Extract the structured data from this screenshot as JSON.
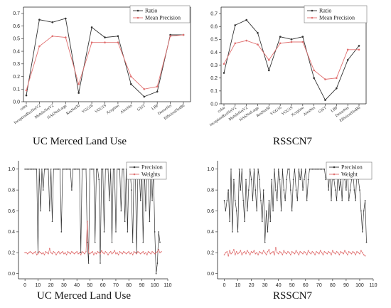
{
  "colors": {
    "series1": "#333333",
    "series2": "#e07070",
    "axis": "#222222"
  },
  "chart_data": [
    {
      "type": "line",
      "caption": "UC Merced Land Use",
      "categories": [
        "color",
        "InceptionResNetV2",
        "MobileNetV2",
        "NASNetLarge",
        "ResNet50",
        "VGG16",
        "VGG19",
        "Xception",
        "AlexNet",
        "GIST",
        "LBP",
        "DenseNet",
        "EfficientNetB0"
      ],
      "yticks": [
        "0.0",
        "0.1",
        "0.2",
        "0.3",
        "0.4",
        "0.5",
        "0.6",
        "0.7"
      ],
      "ylim": [
        0,
        0.75
      ],
      "legend": {
        "position": "top-right"
      },
      "series": [
        {
          "name": "Ratio",
          "values": [
            0.05,
            0.65,
            0.63,
            0.66,
            0.07,
            0.59,
            0.51,
            0.52,
            0.14,
            0.04,
            0.08,
            0.53,
            0.53
          ]
        },
        {
          "name": "Mean Precision",
          "values": [
            0.09,
            0.44,
            0.52,
            0.51,
            0.14,
            0.47,
            0.47,
            0.47,
            0.2,
            0.1,
            0.12,
            0.52,
            0.53
          ]
        }
      ]
    },
    {
      "type": "line",
      "caption": "RSSCN7",
      "categories": [
        "color",
        "InceptionResNetV2",
        "MobileNetV2",
        "NASNetLarge",
        "ResNet50",
        "VGG16",
        "VGG19",
        "Xception",
        "AlexNet",
        "GIST",
        "LBP",
        "DenseNet",
        "EfficientNetB0"
      ],
      "yticks": [
        "0.0",
        "0.1",
        "0.2",
        "0.3",
        "0.4",
        "0.5",
        "0.6",
        "0.7"
      ],
      "ylim": [
        0,
        0.75
      ],
      "legend": {
        "position": "top-right"
      },
      "series": [
        {
          "name": "Ratio",
          "values": [
            0.24,
            0.61,
            0.65,
            0.55,
            0.26,
            0.52,
            0.5,
            0.52,
            0.2,
            0.03,
            0.12,
            0.34,
            0.45
          ]
        },
        {
          "name": "Mean Precision",
          "values": [
            0.31,
            0.47,
            0.49,
            0.46,
            0.34,
            0.47,
            0.48,
            0.48,
            0.26,
            0.19,
            0.2,
            0.42,
            0.42
          ]
        }
      ]
    },
    {
      "type": "line",
      "caption": "UC Merced Land Use",
      "xticks": [
        "0",
        "10",
        "20",
        "30",
        "40",
        "50",
        "60",
        "70",
        "80",
        "90",
        "100",
        "110"
      ],
      "xlim": [
        -5,
        110
      ],
      "yticks": [
        "0.0",
        "0.2",
        "0.4",
        "0.6",
        "0.8",
        "1.0"
      ],
      "ylim": [
        -0.05,
        1.08
      ],
      "legend": {
        "position": "top-right"
      },
      "series": [
        {
          "name": "Precision",
          "values": [
            1,
            1,
            1,
            1,
            1,
            1,
            1,
            1,
            1,
            1,
            0.2,
            1,
            0.6,
            1,
            0.8,
            1,
            1,
            1,
            1,
            0.6,
            1,
            0.5,
            1,
            1,
            1,
            1,
            1,
            1,
            0.4,
            1,
            1,
            1,
            1,
            1,
            1,
            1,
            0.8,
            1,
            1,
            1,
            1,
            1,
            1,
            0.2,
            1,
            1,
            1,
            1,
            0.3,
            0.1,
            1,
            1,
            1,
            1,
            0.3,
            1,
            1,
            0.9,
            0.1,
            1,
            1,
            0.4,
            1,
            1,
            1,
            0.7,
            1,
            0.3,
            1,
            1,
            0.4,
            1,
            1,
            1,
            0.6,
            1,
            1,
            0.5,
            1,
            0.4,
            1,
            1,
            0.8,
            0.3,
            1,
            1,
            0.2,
            1,
            1,
            0.7,
            1,
            0.3,
            1,
            0.6,
            1,
            1,
            0.5,
            1,
            0.7,
            1,
            0.4,
            0.0,
            0.1,
            0.4,
            0.3
          ]
        },
        {
          "name": "Weights",
          "values": [
            0.2,
            0.2,
            0.19,
            0.2,
            0.21,
            0.2,
            0.19,
            0.2,
            0.21,
            0.18,
            0.19,
            0.21,
            0.2,
            0.19,
            0.2,
            0.18,
            0.21,
            0.2,
            0.19,
            0.24,
            0.2,
            0.19,
            0.21,
            0.2,
            0.18,
            0.2,
            0.21,
            0.19,
            0.2,
            0.21,
            0.19,
            0.2,
            0.18,
            0.21,
            0.2,
            0.19,
            0.21,
            0.2,
            0.19,
            0.2,
            0.21,
            0.19,
            0.2,
            0.18,
            0.21,
            0.2,
            0.19,
            0.21,
            0.5,
            0.2,
            0.19,
            0.2,
            0.21,
            0.18,
            0.2,
            0.19,
            0.21,
            0.2,
            0.19,
            0.22,
            0.2,
            0.19,
            0.21,
            0.2,
            0.18,
            0.2,
            0.21,
            0.19,
            0.2,
            0.22,
            0.19,
            0.2,
            0.18,
            0.21,
            0.2,
            0.19,
            0.21,
            0.2,
            0.19,
            0.2,
            0.21,
            0.19,
            0.2,
            0.18,
            0.21,
            0.2,
            0.19,
            0.21,
            0.2,
            0.19,
            0.2,
            0.21,
            0.19,
            0.2,
            0.18,
            0.21,
            0.2,
            0.19,
            0.21,
            0.2,
            0.19,
            0.2,
            0.21,
            0.23,
            0.2,
            0.21
          ]
        }
      ]
    },
    {
      "type": "line",
      "caption": "RSSCN7",
      "xticks": [
        "0",
        "10",
        "20",
        "30",
        "40",
        "50",
        "60",
        "70",
        "80",
        "90",
        "100",
        "110"
      ],
      "xlim": [
        -5,
        110
      ],
      "yticks": [
        "0.0",
        "0.2",
        "0.4",
        "0.6",
        "0.8",
        "1.0"
      ],
      "ylim": [
        -0.05,
        1.08
      ],
      "legend": {
        "position": "top-right"
      },
      "series": [
        {
          "name": "Precision",
          "values": [
            0.7,
            0.6,
            0.7,
            0.8,
            0.5,
            1,
            0.4,
            0.9,
            0.7,
            0.6,
            0.4,
            1,
            0.8,
            1,
            0.7,
            0.5,
            0.9,
            0.6,
            0.8,
            1,
            0.9,
            0.7,
            1,
            0.8,
            0.6,
            1,
            0.9,
            0.7,
            0.5,
            0.8,
            0.3,
            0.6,
            0.4,
            0.7,
            0.5,
            0.9,
            0.6,
            1,
            0.8,
            0.7,
            1,
            0.9,
            0.6,
            1,
            0.8,
            0.7,
            0.9,
            1,
            1,
            0.8,
            0.6,
            0.9,
            1,
            0.8,
            0.7,
            1,
            0.9,
            1,
            0.8,
            0.9,
            1,
            0.7,
            0.9,
            1,
            1,
            1,
            1,
            1,
            1,
            1,
            1,
            1,
            1,
            1,
            1,
            0.9,
            1,
            0.8,
            1,
            0.7,
            1,
            0.9,
            0.8,
            0.7,
            1,
            0.8,
            0.9,
            0.7,
            1,
            0.9,
            0.8,
            1,
            0.7,
            0.8,
            0.9,
            1,
            0.8,
            0.7,
            1,
            0.9,
            0.8,
            0.6,
            0.4,
            0.6,
            0.7,
            0.3
          ]
        },
        {
          "name": "Weight",
          "values": [
            0.18,
            0.2,
            0.21,
            0.17,
            0.22,
            0.19,
            0.2,
            0.23,
            0.18,
            0.21,
            0.19,
            0.2,
            0.22,
            0.18,
            0.2,
            0.21,
            0.19,
            0.22,
            0.2,
            0.18,
            0.21,
            0.2,
            0.22,
            0.19,
            0.2,
            0.18,
            0.21,
            0.2,
            0.19,
            0.22,
            0.2,
            0.18,
            0.21,
            0.23,
            0.19,
            0.2,
            0.21,
            0.18,
            0.25,
            0.2,
            0.19,
            0.21,
            0.2,
            0.18,
            0.22,
            0.2,
            0.19,
            0.21,
            0.2,
            0.18,
            0.21,
            0.2,
            0.19,
            0.22,
            0.2,
            0.18,
            0.21,
            0.2,
            0.19,
            0.21,
            0.2,
            0.18,
            0.22,
            0.2,
            0.19,
            0.21,
            0.2,
            0.18,
            0.21,
            0.2,
            0.19,
            0.22,
            0.2,
            0.18,
            0.21,
            0.2,
            0.19,
            0.21,
            0.2,
            0.18,
            0.22,
            0.2,
            0.19,
            0.21,
            0.2,
            0.18,
            0.21,
            0.2,
            0.19,
            0.22,
            0.2,
            0.18,
            0.21,
            0.2,
            0.19,
            0.21,
            0.2,
            0.18,
            0.21,
            0.2,
            0.19,
            0.22,
            0.2,
            0.18,
            0.17
          ]
        }
      ]
    }
  ]
}
